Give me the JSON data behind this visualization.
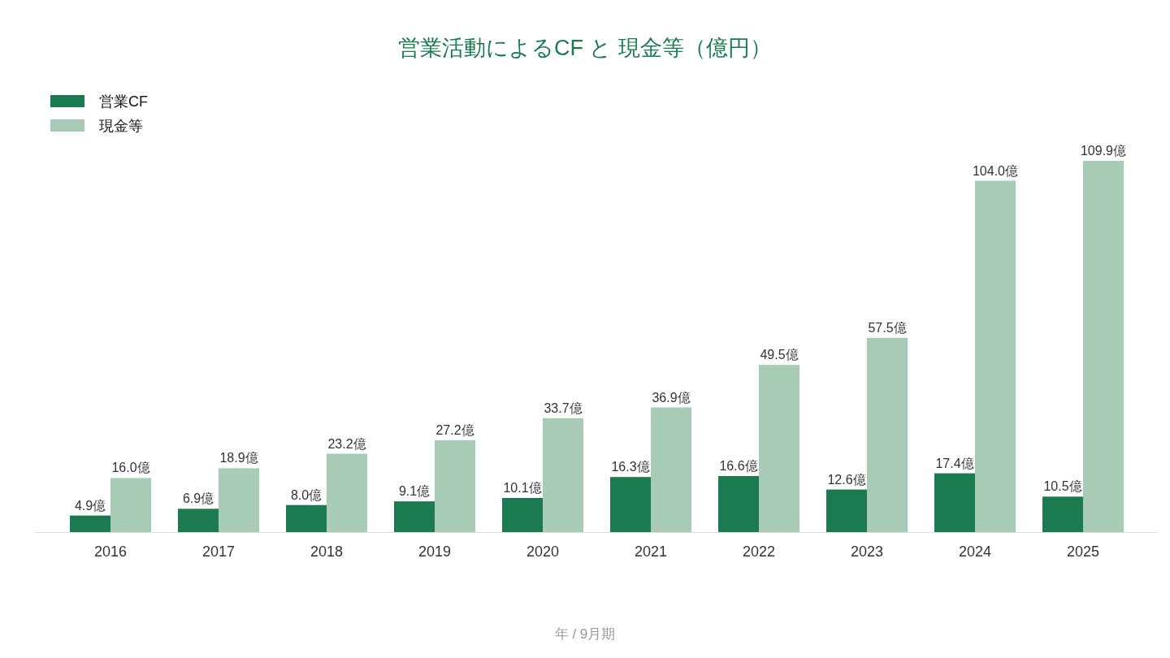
{
  "chart_data": {
    "type": "bar",
    "title": "営業活動によるCF と 現金等（億円）",
    "xlabel": "年 / 9月期",
    "categories": [
      "2016",
      "2017",
      "2018",
      "2019",
      "2020",
      "2021",
      "2022",
      "2023",
      "2024",
      "2025"
    ],
    "series": [
      {
        "name": "営業CF",
        "color": "#1b7a50",
        "values": [
          4.9,
          6.9,
          8.0,
          9.1,
          10.1,
          16.3,
          16.6,
          12.6,
          17.4,
          10.5
        ],
        "value_labels": [
          "4.9億",
          "6.9億",
          "8.0億",
          "9.1億",
          "10.1億",
          "16.3億",
          "16.6億",
          "12.6億",
          "17.4億",
          "10.5億"
        ]
      },
      {
        "name": "現金等",
        "color": "#a8cbb5",
        "values": [
          16.0,
          18.9,
          23.2,
          27.2,
          33.7,
          36.9,
          49.5,
          57.5,
          104.0,
          109.9
        ],
        "value_labels": [
          "16.0億",
          "18.9億",
          "23.2億",
          "27.2億",
          "33.7億",
          "36.9億",
          "49.5億",
          "57.5億",
          "104.0億",
          "109.9億"
        ]
      }
    ],
    "legend": "top left"
  }
}
